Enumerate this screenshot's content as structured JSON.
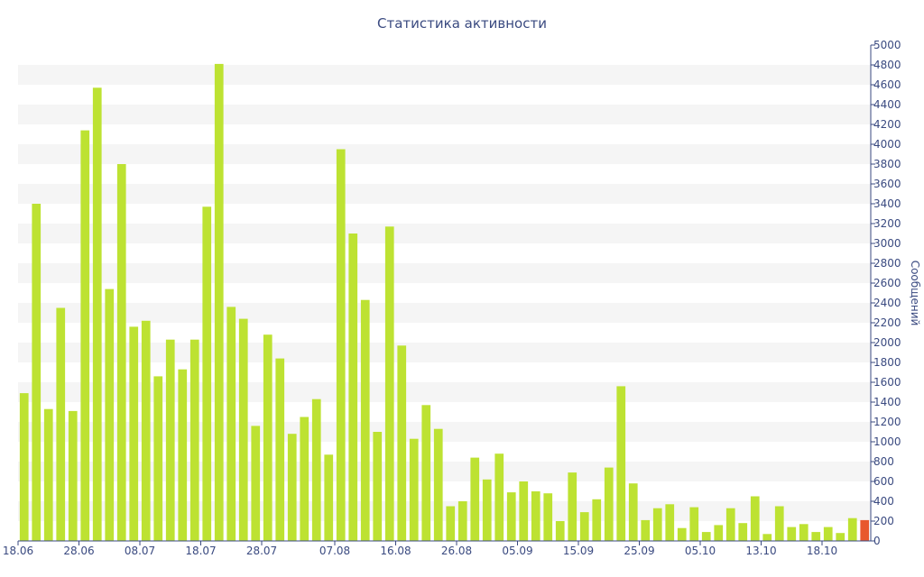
{
  "chart_data": {
    "type": "bar",
    "title": "Статистика активности",
    "ylabel": "Сообщений",
    "ylim": [
      0,
      5000
    ],
    "yticks": [
      0,
      200,
      400,
      600,
      800,
      1000,
      1200,
      1400,
      1600,
      1800,
      2000,
      2200,
      2400,
      2600,
      2800,
      3000,
      3200,
      3400,
      3600,
      3800,
      4000,
      4200,
      4400,
      4600,
      4800,
      5000
    ],
    "xtick_labels": [
      "18.06",
      "28.06",
      "08.07",
      "18.07",
      "28.07",
      "07.08",
      "16.08",
      "26.08",
      "05.09",
      "15.09",
      "25.09",
      "05.10",
      "13.10",
      "18.10"
    ],
    "xtick_bar_index": [
      0,
      5,
      10,
      15,
      20,
      26,
      31,
      36,
      41,
      46,
      51,
      56,
      61,
      66
    ],
    "colors": {
      "bar": "#bde232",
      "highlight": "#e8582c",
      "axis": "#3a4a80",
      "band": "#f5f5f5"
    },
    "values": [
      1490,
      3400,
      1330,
      2350,
      1310,
      4140,
      4570,
      2540,
      3800,
      2160,
      2220,
      1660,
      2030,
      1730,
      2030,
      3370,
      4810,
      2360,
      2240,
      1160,
      2080,
      1840,
      1080,
      1250,
      1430,
      870,
      3950,
      3100,
      2430,
      1100,
      3170,
      1970,
      1030,
      1370,
      1130,
      350,
      400,
      840,
      620,
      880,
      490,
      600,
      500,
      480,
      200,
      690,
      290,
      420,
      740,
      1560,
      580,
      210,
      330,
      370,
      130,
      340,
      90,
      160,
      330,
      180,
      450,
      70,
      350,
      140,
      170,
      90,
      140,
      80,
      230,
      210
    ],
    "highlight_index": 69
  }
}
